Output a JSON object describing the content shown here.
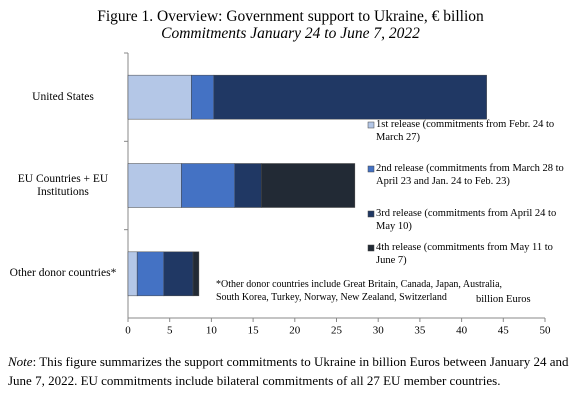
{
  "chart_data": {
    "type": "stacked-barh",
    "title": "Figure 1. Overview: Government support to Ukraine, € billion",
    "subtitle": "Commitments January 24 to June 7, 2022",
    "categories": [
      "United States",
      "EU Countries + EU Institutions",
      "Other donor countries*"
    ],
    "series": [
      {
        "name": "1st release (commitments from Febr. 24 to March 27)",
        "color": "#b4c7e7",
        "values": [
          7.6,
          6.4,
          1.1
        ]
      },
      {
        "name": "2nd release (commitments from March 28 to April 23 and Jan. 24 to Feb. 23)",
        "color": "#4472c4",
        "values": [
          2.7,
          6.4,
          3.2
        ]
      },
      {
        "name": "3rd release (commitments from April 24 to May 10)",
        "color": "#203864",
        "values": [
          32.7,
          3.2,
          3.5
        ]
      },
      {
        "name": "4th release (commitments from May 11 to June 7)",
        "color": "#222a35",
        "values": [
          0,
          11.2,
          0.7
        ]
      }
    ],
    "xlim": [
      0,
      50
    ],
    "xticks": [
      0,
      5,
      10,
      15,
      20,
      25,
      30,
      35,
      40,
      45,
      50
    ],
    "xlabel": "billion Euros",
    "annotation": "*Other donor countries include Great Britain, Canada, Japan, Australia, South Korea, Turkey, Norway, New Zealand, Switzerland",
    "legend": "right",
    "note_label": "Note",
    "note": ": This figure summarizes the support commitments to Ukraine in billion Euros between January 24 and June 7, 2022. EU commitments include bilateral commitments of all 27 EU member countries."
  }
}
